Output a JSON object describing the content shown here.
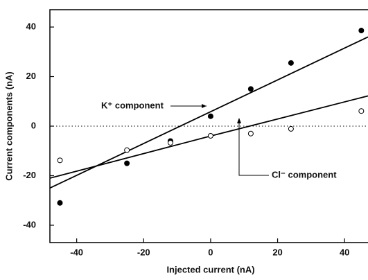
{
  "chart_data": {
    "type": "scatter",
    "xlabel": "Injected current (nA)",
    "ylabel": "Current components (nA)",
    "xlim": [
      -48,
      47
    ],
    "ylim": [
      -47,
      47
    ],
    "xticks": [
      -40,
      -20,
      0,
      20,
      40
    ],
    "yticks": [
      -40,
      -20,
      0,
      20,
      40
    ],
    "hline": 0,
    "series": [
      {
        "name": "K⁺ component",
        "color": "#000000",
        "marker": "filled",
        "x": [
          -45,
          -25,
          -12,
          0,
          12,
          24,
          45
        ],
        "values": [
          -31,
          -15,
          -6,
          4,
          15,
          25.5,
          38.6
        ],
        "fit": {
          "x": [
            -48,
            47
          ],
          "values": [
            -25,
            36
          ]
        }
      },
      {
        "name": "Cl⁻ component",
        "color": "#000000",
        "marker": "open",
        "x": [
          -45,
          -25,
          -12,
          0,
          12,
          24,
          45
        ],
        "values": [
          -13.8,
          -9.7,
          -6.7,
          -3.9,
          -3,
          -1.1,
          6.1
        ],
        "fit": {
          "x": [
            -48,
            0,
            47
          ],
          "values": [
            -21,
            -4,
            12.2
          ]
        }
      }
    ]
  }
}
